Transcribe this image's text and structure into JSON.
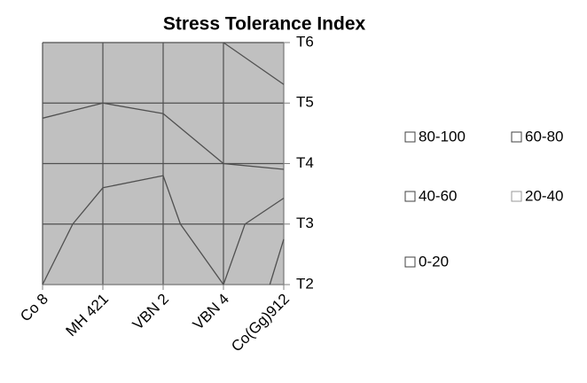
{
  "chart_data": {
    "type": "contour",
    "title": "Stress Tolerance Index",
    "categories": [
      "Co 8",
      "MH 421",
      "VBN 2",
      "VBN 4",
      "Co(Gg)912"
    ],
    "series": [
      {
        "name": "T2",
        "values": [
          40,
          28,
          24,
          40,
          14
        ]
      },
      {
        "name": "T3",
        "values": [
          46,
          34,
          36,
          50,
          22
        ]
      },
      {
        "name": "T4",
        "values": [
          54,
          44,
          41,
          60,
          64
        ]
      },
      {
        "name": "T5",
        "values": [
          62,
          60,
          64,
          70,
          76
        ]
      },
      {
        "name": "T6",
        "values": [
          70,
          72,
          76,
          80,
          89
        ]
      }
    ],
    "zlim": [
      0,
      100
    ],
    "zticks": [
      0,
      20,
      40,
      60,
      80,
      100
    ],
    "legend": [
      "80-100",
      "60-80",
      "40-60",
      "20-40",
      "0-20"
    ],
    "fill_color": "#c0c0c0",
    "line_color": "#505050",
    "grid": true
  }
}
